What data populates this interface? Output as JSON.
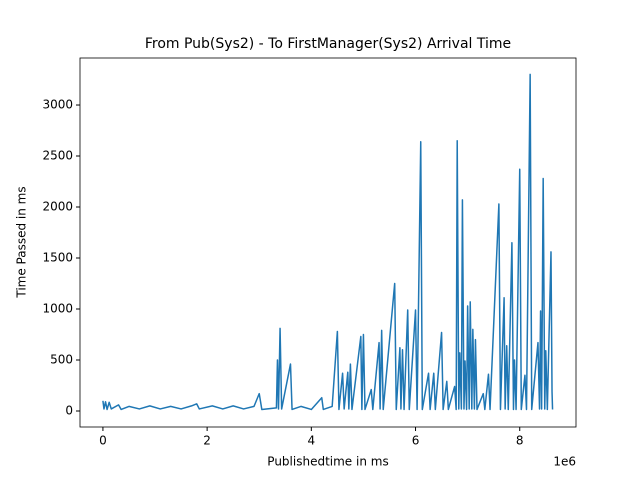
{
  "chart_data": {
    "type": "line",
    "title": "From Pub(Sys2) - To FirstManager(Sys2) Arrival Time",
    "x_label": "Publishedtime in ms",
    "y_label": "Time Passed in ms",
    "x_offset_label": "1e6",
    "series": [
      {
        "color": "#1f77b4",
        "x": [
          0,
          0.02,
          0.05,
          0.08,
          0.12,
          0.16,
          0.3,
          0.35,
          0.5,
          0.7,
          0.9,
          1.1,
          1.3,
          1.5,
          1.7,
          1.8,
          1.85,
          2.1,
          2.3,
          2.5,
          2.7,
          2.9,
          3.0,
          3.05,
          3.33,
          3.35,
          3.37,
          3.4,
          3.43,
          3.6,
          3.63,
          3.8,
          4.0,
          4.2,
          4.23,
          4.4,
          4.5,
          4.53,
          4.6,
          4.63,
          4.7,
          4.72,
          4.75,
          4.78,
          4.95,
          4.97,
          5.0,
          5.03,
          5.15,
          5.18,
          5.3,
          5.32,
          5.35,
          5.38,
          5.6,
          5.63,
          5.7,
          5.72,
          5.75,
          5.78,
          5.85,
          5.88,
          6.0,
          6.03,
          6.1,
          6.13,
          6.25,
          6.28,
          6.35,
          6.38,
          6.5,
          6.53,
          6.6,
          6.63,
          6.75,
          6.78,
          6.8,
          6.83,
          6.85,
          6.88,
          6.9,
          6.93,
          6.95,
          6.98,
          7.0,
          7.03,
          7.05,
          7.08,
          7.1,
          7.13,
          7.15,
          7.18,
          7.3,
          7.33,
          7.4,
          7.43,
          7.6,
          7.63,
          7.7,
          7.72,
          7.75,
          7.78,
          7.85,
          7.88,
          7.9,
          7.93,
          8.0,
          8.03,
          8.1,
          8.13,
          8.2,
          8.23,
          8.35,
          8.38,
          8.4,
          8.42,
          8.45,
          8.48,
          8.5,
          8.53,
          8.6,
          8.62,
          8.63
        ],
        "values": [
          100,
          20,
          90,
          15,
          85,
          20,
          60,
          15,
          45,
          20,
          50,
          20,
          45,
          20,
          50,
          70,
          20,
          50,
          20,
          50,
          20,
          45,
          170,
          15,
          30,
          500,
          20,
          810,
          20,
          460,
          15,
          45,
          15,
          130,
          15,
          45,
          780,
          15,
          370,
          20,
          380,
          20,
          460,
          15,
          730,
          15,
          750,
          15,
          210,
          15,
          670,
          20,
          790,
          15,
          1250,
          15,
          620,
          20,
          600,
          15,
          990,
          15,
          990,
          15,
          2640,
          15,
          370,
          15,
          370,
          15,
          770,
          15,
          290,
          15,
          240,
          15,
          2650,
          20,
          570,
          20,
          2070,
          20,
          490,
          15,
          1030,
          20,
          1070,
          20,
          800,
          20,
          700,
          15,
          170,
          15,
          360,
          15,
          2030,
          15,
          1110,
          20,
          640,
          15,
          1650,
          15,
          500,
          15,
          2370,
          15,
          350,
          15,
          3300,
          15,
          670,
          20,
          980,
          20,
          2280,
          20,
          590,
          15,
          1560,
          190,
          15
        ]
      }
    ],
    "xlim": [
      -0.44,
      9.08
    ],
    "ylim": [
      -157,
      3461
    ],
    "xticks": [
      0,
      2,
      4,
      6,
      8
    ],
    "yticks": [
      0,
      500,
      1000,
      1500,
      2000,
      2500,
      3000
    ]
  }
}
